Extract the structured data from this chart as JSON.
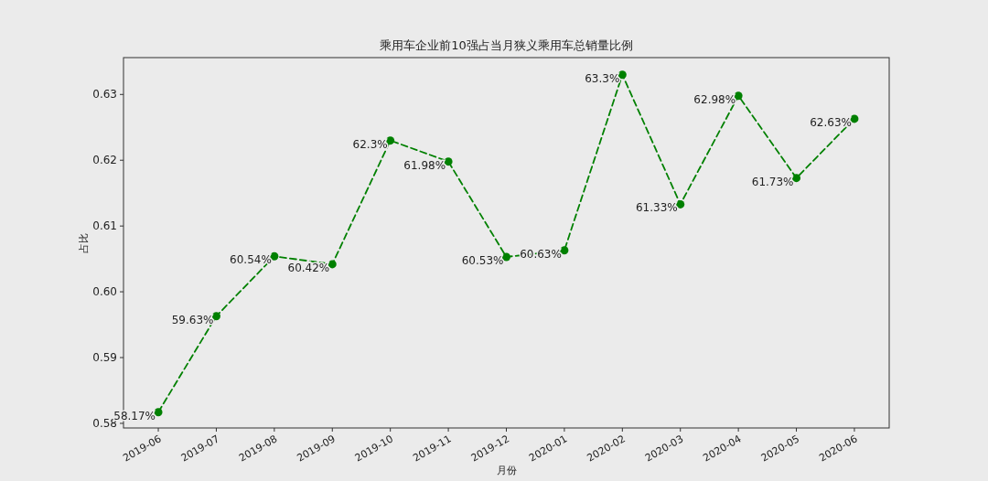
{
  "chart_data": {
    "type": "line",
    "title": "乘用车企业前10强占当月狭义乘用车总销量比例",
    "xlabel": "月份",
    "ylabel": "占比",
    "categories": [
      "2019-06",
      "2019-07",
      "2019-08",
      "2019-09",
      "2019-10",
      "2019-11",
      "2019-12",
      "2020-01",
      "2020-02",
      "2020-03",
      "2020-04",
      "2020-05",
      "2020-06"
    ],
    "series": [
      {
        "color": "#008000",
        "values": [
          0.5817,
          0.5963,
          0.6054,
          0.6042,
          0.623,
          0.6198,
          0.6053,
          0.6063,
          0.633,
          0.6133,
          0.6298,
          0.6173,
          0.6263
        ],
        "value_labels": [
          "58.17%",
          "59.63%",
          "60.54%",
          "60.42%",
          "62.3%",
          "61.98%",
          "60.53%",
          "60.63%",
          "63.3%",
          "61.33%",
          "62.98%",
          "61.73%",
          "62.63%"
        ]
      }
    ],
    "ylim": [
      0.5793,
      0.6356
    ],
    "yticks": [
      0.58,
      0.59,
      {
        "value": 0.6,
        "label": "0.60"
      },
      0.61,
      0.62,
      0.63
    ],
    "marker": "circle",
    "line_style": "dashed",
    "grid": false
  }
}
